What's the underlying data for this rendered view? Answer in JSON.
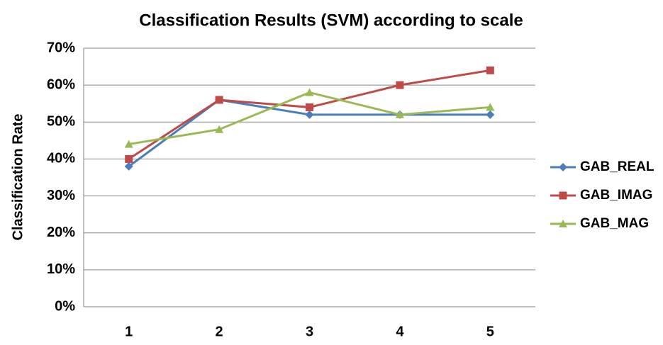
{
  "chart_data": {
    "type": "line",
    "title": "Classification Results (SVM) according to scale",
    "y_label": "Classification Rate",
    "categories": [
      "1",
      "2",
      "3",
      "4",
      "5"
    ],
    "series": [
      {
        "name": "GAB_REAL",
        "color": "#4a7ebb",
        "marker": "diamond",
        "values": [
          38,
          56,
          52,
          52,
          52
        ]
      },
      {
        "name": "GAB_IMAG",
        "color": "#be4b48",
        "marker": "square",
        "values": [
          40,
          56,
          54,
          60,
          64
        ]
      },
      {
        "name": "GAB_MAG",
        "color": "#98b954",
        "marker": "triangle",
        "values": [
          44,
          48,
          58,
          52,
          54
        ]
      }
    ],
    "ylim": [
      0,
      70
    ],
    "yticks": [
      {
        "value": 0,
        "label": "0%"
      },
      {
        "value": 10,
        "label": "10%"
      },
      {
        "value": 20,
        "label": "20%"
      },
      {
        "value": 30,
        "label": "30%"
      },
      {
        "value": 40,
        "label": "40%"
      },
      {
        "value": 50,
        "label": "50%"
      },
      {
        "value": 60,
        "label": "60%"
      },
      {
        "value": 70,
        "label": "70%"
      }
    ],
    "grid": true,
    "legend": "right"
  }
}
